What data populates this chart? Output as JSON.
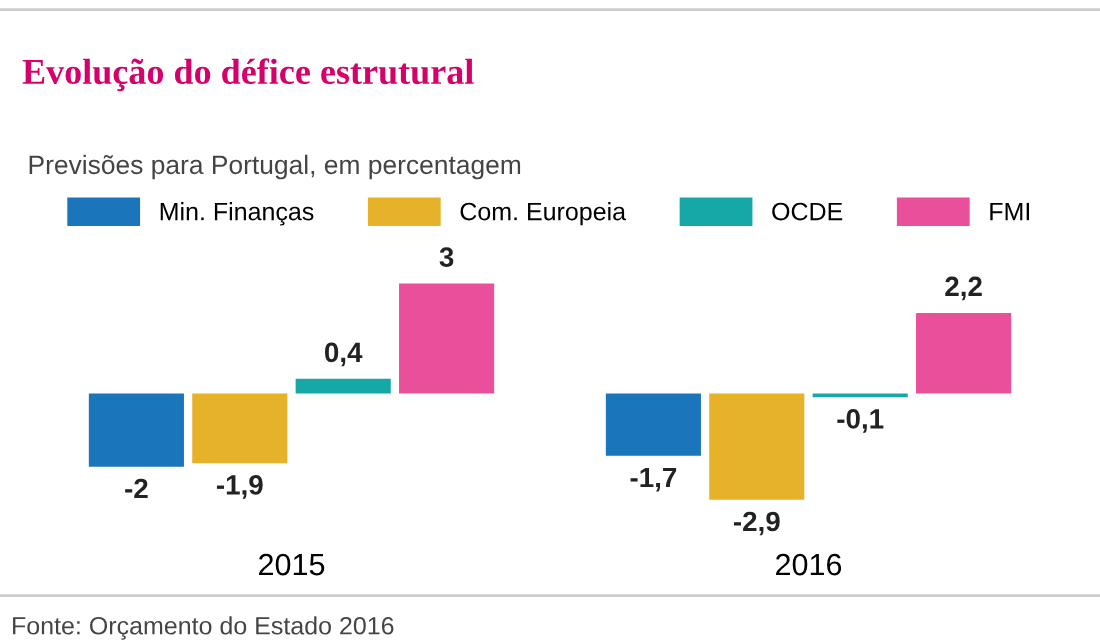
{
  "chart_data": {
    "type": "bar",
    "title": "Evolução do défice estrutural",
    "subtitle": "Previsões para Portugal, em percentagem",
    "annotations": [
      "Fonte: Orçamento do Estado 2016"
    ],
    "categories": [
      "2015",
      "2016"
    ],
    "legend": "top",
    "data_labels": true,
    "series": [
      {
        "name": "Min. Finanças",
        "color": "#1b75bb",
        "values": [
          -2,
          -1.7
        ],
        "value_labels": [
          "-2",
          "-1,7"
        ]
      },
      {
        "name": "Com. Europeia",
        "color": "#e6b22a",
        "values": [
          -1.9,
          -2.9
        ],
        "value_labels": [
          "-1,9",
          "-2,9"
        ]
      },
      {
        "name": "OCDE",
        "color": "#16a8a6",
        "values": [
          0.4,
          -0.1
        ],
        "value_labels": [
          "0,4",
          "-0,1"
        ]
      },
      {
        "name": "FMI",
        "color": "#ea4f9b",
        "values": [
          3,
          2.2
        ],
        "value_labels": [
          "3",
          "2,2"
        ]
      }
    ]
  }
}
